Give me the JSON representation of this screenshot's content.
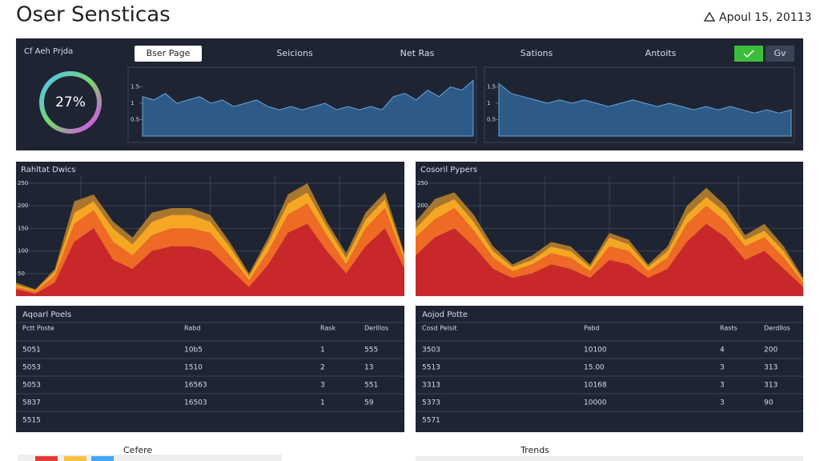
{
  "header": {
    "title": "Oser Sensticas",
    "date": "Apoul 15, 20113"
  },
  "top_panel": {
    "label": "Cf Aeh Prjda",
    "donut_label": "27%",
    "tabs": [
      "Bser Page",
      "Seicions",
      "Net Ras",
      "Sations",
      "Antoits"
    ],
    "button": "Gv"
  },
  "mini_charts": [
    {
      "ylim": [
        0,
        2
      ],
      "yticks": [
        0.5,
        1,
        1.5
      ],
      "values": [
        1.2,
        1.1,
        1.3,
        1.0,
        1.1,
        1.2,
        1.0,
        1.1,
        0.9,
        1.0,
        1.1,
        0.9,
        0.8,
        0.9,
        0.8,
        0.9,
        1.0,
        0.8,
        0.9,
        0.8,
        0.9,
        0.8,
        1.2,
        1.3,
        1.1,
        1.4,
        1.2,
        1.5,
        1.4,
        1.7
      ]
    },
    {
      "ylim": [
        0,
        2
      ],
      "yticks": [
        0.5,
        1,
        1.5
      ],
      "values": [
        1.6,
        1.3,
        1.2,
        1.1,
        1.0,
        1.1,
        1.0,
        1.1,
        1.0,
        0.9,
        1.0,
        1.1,
        1.0,
        0.9,
        1.0,
        0.9,
        0.8,
        0.9,
        0.8,
        0.9,
        0.8,
        0.7,
        0.8,
        0.7,
        0.8
      ]
    }
  ],
  "area_charts": [
    {
      "title": "Rahltat Dwics",
      "ylim": [
        0,
        280
      ],
      "yticks": [
        50,
        100,
        150,
        200,
        250
      ],
      "series": [
        {
          "color": "#c8282a",
          "values": [
            15,
            5,
            30,
            120,
            150,
            80,
            60,
            100,
            110,
            110,
            100,
            60,
            20,
            70,
            140,
            160,
            100,
            50,
            110,
            150,
            60
          ]
        },
        {
          "color": "#ee6a25",
          "values": [
            5,
            5,
            15,
            40,
            40,
            40,
            30,
            35,
            40,
            40,
            40,
            30,
            15,
            30,
            40,
            45,
            35,
            20,
            40,
            45,
            20
          ]
        },
        {
          "color": "#f5a623",
          "values": [
            5,
            3,
            10,
            25,
            20,
            30,
            25,
            30,
            30,
            30,
            25,
            20,
            10,
            20,
            25,
            25,
            20,
            15,
            20,
            20,
            10
          ]
        },
        {
          "color": "#a8762e",
          "values": [
            5,
            2,
            5,
            25,
            15,
            15,
            15,
            20,
            15,
            15,
            15,
            10,
            5,
            10,
            20,
            20,
            10,
            10,
            15,
            15,
            5
          ]
        }
      ]
    },
    {
      "title": "Cosoril Pypers",
      "ylim": [
        0,
        280
      ],
      "yticks": [
        50,
        100,
        150,
        200,
        250
      ],
      "series": [
        {
          "color": "#c8282a",
          "values": [
            90,
            130,
            150,
            110,
            60,
            40,
            50,
            70,
            60,
            40,
            80,
            70,
            40,
            60,
            120,
            160,
            130,
            80,
            100,
            60,
            20
          ]
        },
        {
          "color": "#ee6a25",
          "values": [
            40,
            40,
            45,
            35,
            25,
            15,
            20,
            25,
            25,
            15,
            30,
            30,
            15,
            25,
            40,
            40,
            35,
            30,
            30,
            25,
            10
          ]
        },
        {
          "color": "#f5a623",
          "values": [
            20,
            25,
            20,
            20,
            15,
            10,
            10,
            15,
            15,
            10,
            20,
            15,
            10,
            15,
            20,
            20,
            20,
            15,
            15,
            15,
            5
          ]
        },
        {
          "color": "#a8762e",
          "values": [
            15,
            20,
            15,
            15,
            10,
            5,
            10,
            10,
            10,
            5,
            10,
            10,
            5,
            10,
            20,
            20,
            15,
            10,
            15,
            10,
            5
          ]
        }
      ]
    }
  ],
  "tables": [
    {
      "title": "Aqoarl Poels",
      "headers": [
        "Pctt Poste",
        "Rabd",
        "Rask",
        "Derlllos"
      ],
      "rows": [
        [
          "5051",
          "10b5",
          "1",
          "555"
        ],
        [
          "5053",
          "1510",
          "2",
          "13"
        ],
        [
          "5053",
          "16563",
          "3",
          "551"
        ],
        [
          "5837",
          "16503",
          "1",
          "59"
        ],
        [
          "5515"
        ]
      ]
    },
    {
      "title": "Aojod Potte",
      "headers": [
        "Cosd Pelsit",
        "Pabd",
        "Rasts",
        "Derdllos"
      ],
      "rows": [
        [
          "3503",
          "10100",
          "4",
          "200"
        ],
        [
          "5513",
          "15.00",
          "3",
          "313"
        ],
        [
          "3313",
          "10168",
          "3",
          "313"
        ],
        [
          "5373",
          "10000",
          "3",
          "90"
        ],
        [
          "5571"
        ]
      ]
    }
  ],
  "footer": {
    "left": "Cefere",
    "right": "Trends"
  }
}
